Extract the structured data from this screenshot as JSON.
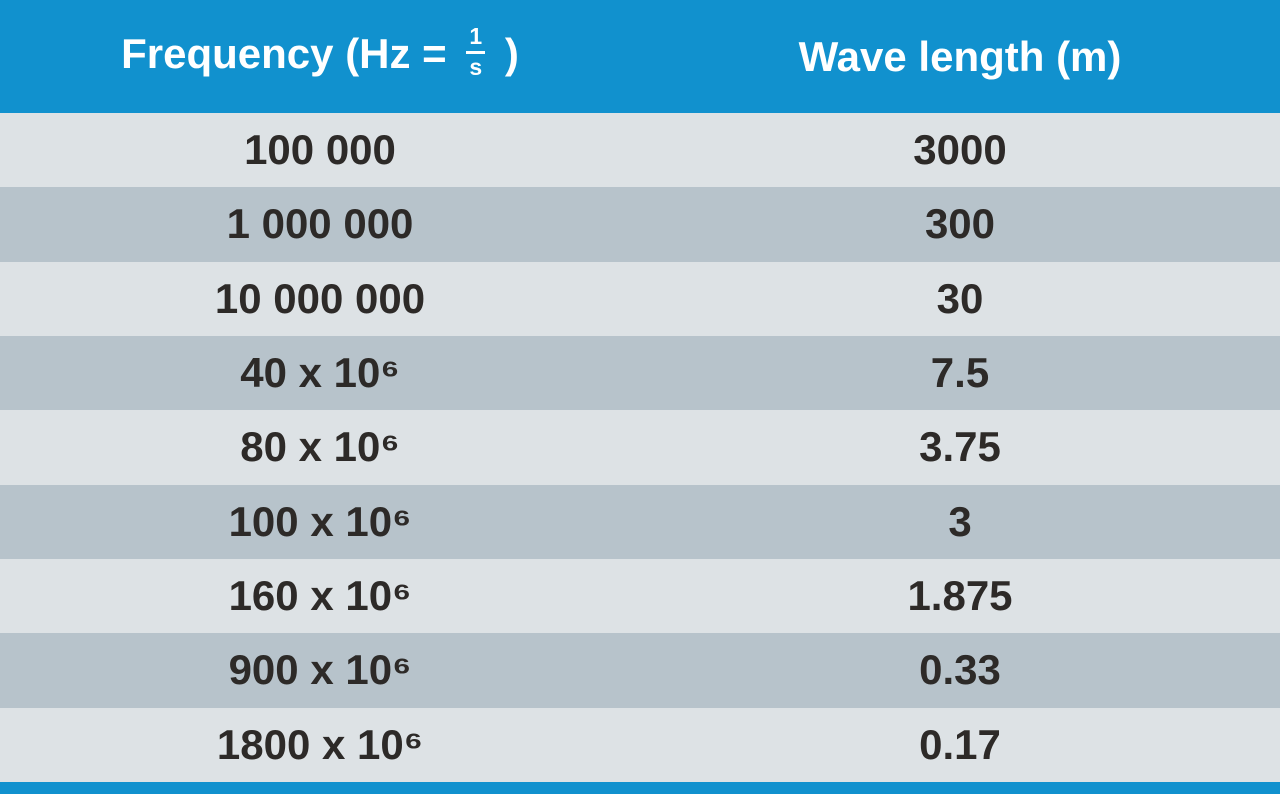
{
  "table": {
    "header": {
      "frequency_prefix": "Frequency (Hz =",
      "fraction_numerator": "1",
      "fraction_denominator": "s",
      "frequency_suffix": ")",
      "wavelength_label": "Wave length (m)"
    },
    "rows": [
      {
        "frequency": "100 000",
        "wavelength": "3000"
      },
      {
        "frequency": "1 000 000",
        "wavelength": "300"
      },
      {
        "frequency": "10 000 000",
        "wavelength": "30"
      },
      {
        "frequency": "40 x 10⁶",
        "wavelength": "7.5"
      },
      {
        "frequency": "80 x 10⁶",
        "wavelength": "3.75"
      },
      {
        "frequency": "100 x 10⁶",
        "wavelength": "3"
      },
      {
        "frequency": "160 x 10⁶",
        "wavelength": "1.875"
      },
      {
        "frequency": "900 x 10⁶",
        "wavelength": "0.33"
      },
      {
        "frequency": "1800 x 10⁶",
        "wavelength": "0.17"
      }
    ],
    "colors": {
      "header_blue": "#1191ce",
      "row_light": "#dde2e5",
      "row_dark": "#b7c3cb",
      "text_dark": "#2d2a28",
      "header_text": "#ffffff"
    }
  },
  "chart_data": {
    "type": "table",
    "title": "Frequency vs Wave length",
    "columns": [
      "Frequency (Hz = 1/s)",
      "Wave length (m)"
    ],
    "rows": [
      [
        "100 000",
        "3000"
      ],
      [
        "1 000 000",
        "300"
      ],
      [
        "10 000 000",
        "30"
      ],
      [
        "40 x 10⁶",
        "7.5"
      ],
      [
        "80 x 10⁶",
        "3.75"
      ],
      [
        "100 x 10⁶",
        "3"
      ],
      [
        "160 x 10⁶",
        "1.875"
      ],
      [
        "900 x 10⁶",
        "0.33"
      ],
      [
        "1800 x 10⁶",
        "0.17"
      ]
    ],
    "frequency_hz": [
      100000,
      1000000,
      10000000,
      40000000,
      80000000,
      100000000,
      160000000,
      900000000,
      1800000000
    ],
    "wavelength_m": [
      3000,
      300,
      30,
      7.5,
      3.75,
      3,
      1.875,
      0.33,
      0.17
    ]
  }
}
